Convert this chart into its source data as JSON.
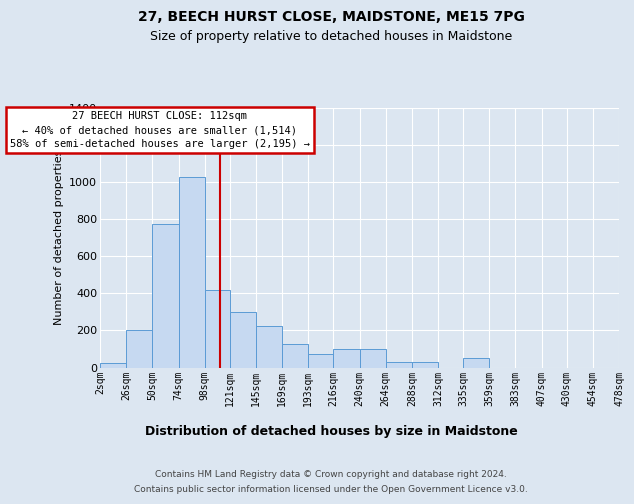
{
  "title": "27, BEECH HURST CLOSE, MAIDSTONE, ME15 7PG",
  "subtitle": "Size of property relative to detached houses in Maidstone",
  "xlabel": "Distribution of detached houses by size in Maidstone",
  "ylabel": "Number of detached properties",
  "footer_line1": "Contains HM Land Registry data © Crown copyright and database right 2024.",
  "footer_line2": "Contains public sector information licensed under the Open Government Licence v3.0.",
  "bar_color": "#c6d9f1",
  "bar_edge_color": "#5b9bd5",
  "background_color": "#dce6f1",
  "grid_color": "#ffffff",
  "vline_x": 112,
  "vline_color": "#cc0000",
  "annotation_line1": "27 BEECH HURST CLOSE: 112sqm",
  "annotation_line2": "← 40% of detached houses are smaller (1,514)",
  "annotation_line3": "58% of semi-detached houses are larger (2,195) →",
  "annotation_box_facecolor": "#ffffff",
  "annotation_box_edge": "#cc0000",
  "bin_edges": [
    2,
    26,
    50,
    74,
    98,
    121,
    145,
    169,
    193,
    216,
    240,
    264,
    288,
    312,
    335,
    359,
    383,
    407,
    430,
    454,
    478
  ],
  "bar_heights": [
    25,
    200,
    775,
    1025,
    420,
    300,
    225,
    125,
    75,
    100,
    100,
    30,
    30,
    0,
    50,
    0,
    0,
    0,
    0,
    0
  ],
  "tick_labels": [
    "2sqm",
    "26sqm",
    "50sqm",
    "74sqm",
    "98sqm",
    "121sqm",
    "145sqm",
    "169sqm",
    "193sqm",
    "216sqm",
    "240sqm",
    "264sqm",
    "288sqm",
    "312sqm",
    "335sqm",
    "359sqm",
    "383sqm",
    "407sqm",
    "430sqm",
    "454sqm",
    "478sqm"
  ],
  "ylim_max": 1400,
  "yticks": [
    0,
    200,
    400,
    600,
    800,
    1000,
    1200,
    1400
  ],
  "title_fontsize": 10,
  "subtitle_fontsize": 9,
  "xlabel_fontsize": 9,
  "ylabel_fontsize": 8,
  "tick_fontsize": 7,
  "ytick_fontsize": 8,
  "footer_fontsize": 6.5,
  "annot_fontsize": 7.5
}
